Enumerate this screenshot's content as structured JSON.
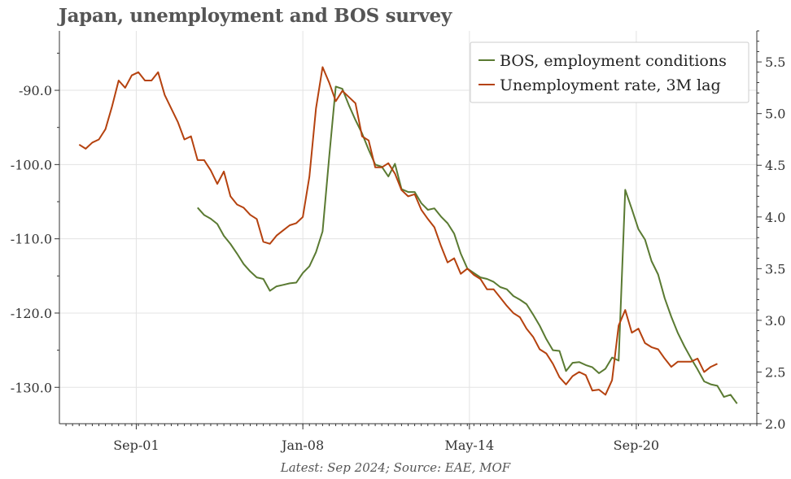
{
  "title": "Japan, unemployment and BOS survey",
  "source": "Latest: Sep 2024; Source: EAE, MOF",
  "chart_data": {
    "type": "line",
    "title": "Japan, unemployment and BOS survey",
    "x_range": [
      1998.75,
      2025.25
    ],
    "x_ticks": [
      {
        "label": "Sep-01",
        "value": 2001.67
      },
      {
        "label": "Jan-08",
        "value": 2008.0
      },
      {
        "label": "May-14",
        "value": 2014.33
      },
      {
        "label": "Sep-20",
        "value": 2020.67
      }
    ],
    "left_axis": {
      "range": [
        -134.9,
        -82.0
      ],
      "ticks": [
        -90,
        -100,
        -110,
        -120,
        -130
      ],
      "tick_labels": [
        "-90.0",
        "-100.0",
        "-110.0",
        "-120.0",
        "-130.0"
      ]
    },
    "right_axis": {
      "range": [
        2.0,
        5.8
      ],
      "ticks": [
        2.0,
        2.5,
        3.0,
        3.5,
        4.0,
        4.5,
        5.0,
        5.5
      ],
      "tick_labels": [
        "2.0",
        "2.5",
        "3.0",
        "3.5",
        "4.0",
        "4.5",
        "5.0",
        "5.5"
      ]
    },
    "grid": true,
    "legend_position": "top-right",
    "series": [
      {
        "name": "BOS, employment conditions",
        "axis": "left",
        "color": "#5a7a32",
        "points": [
          [
            2004.0,
            -105.8
          ],
          [
            2004.25,
            -106.8
          ],
          [
            2004.5,
            -107.3
          ],
          [
            2004.75,
            -108.0
          ],
          [
            2005.0,
            -109.6
          ],
          [
            2005.25,
            -110.7
          ],
          [
            2005.5,
            -112.0
          ],
          [
            2005.75,
            -113.4
          ],
          [
            2006.0,
            -114.4
          ],
          [
            2006.25,
            -115.2
          ],
          [
            2006.5,
            -115.4
          ],
          [
            2006.75,
            -117.0
          ],
          [
            2007.0,
            -116.4
          ],
          [
            2007.25,
            -116.2
          ],
          [
            2007.5,
            -116.0
          ],
          [
            2007.75,
            -115.9
          ],
          [
            2008.0,
            -114.6
          ],
          [
            2008.25,
            -113.7
          ],
          [
            2008.5,
            -111.8
          ],
          [
            2008.75,
            -109.0
          ],
          [
            2009.0,
            -99.0
          ],
          [
            2009.25,
            -89.5
          ],
          [
            2009.5,
            -89.8
          ],
          [
            2009.75,
            -92.0
          ],
          [
            2010.0,
            -94.0
          ],
          [
            2010.25,
            -95.8
          ],
          [
            2010.5,
            -98.0
          ],
          [
            2010.75,
            -100.0
          ],
          [
            2011.0,
            -100.3
          ],
          [
            2011.25,
            -101.6
          ],
          [
            2011.5,
            -99.9
          ],
          [
            2011.75,
            -103.3
          ],
          [
            2012.0,
            -103.7
          ],
          [
            2012.25,
            -103.7
          ],
          [
            2012.5,
            -105.2
          ],
          [
            2012.75,
            -106.1
          ],
          [
            2013.0,
            -105.9
          ],
          [
            2013.25,
            -107.0
          ],
          [
            2013.5,
            -107.9
          ],
          [
            2013.75,
            -109.3
          ],
          [
            2014.0,
            -112.0
          ],
          [
            2014.25,
            -114.0
          ],
          [
            2014.5,
            -114.6
          ],
          [
            2014.75,
            -115.2
          ],
          [
            2015.0,
            -115.4
          ],
          [
            2015.25,
            -115.8
          ],
          [
            2015.5,
            -116.5
          ],
          [
            2015.75,
            -116.8
          ],
          [
            2016.0,
            -117.7
          ],
          [
            2016.25,
            -118.2
          ],
          [
            2016.5,
            -118.8
          ],
          [
            2016.75,
            -120.2
          ],
          [
            2017.0,
            -121.7
          ],
          [
            2017.25,
            -123.5
          ],
          [
            2017.5,
            -125.0
          ],
          [
            2017.75,
            -125.1
          ],
          [
            2018.0,
            -127.8
          ],
          [
            2018.25,
            -126.7
          ],
          [
            2018.5,
            -126.6
          ],
          [
            2018.75,
            -127.0
          ],
          [
            2019.0,
            -127.3
          ],
          [
            2019.25,
            -128.1
          ],
          [
            2019.5,
            -127.5
          ],
          [
            2019.75,
            -126.0
          ],
          [
            2020.0,
            -126.4
          ],
          [
            2020.25,
            -103.4
          ],
          [
            2020.5,
            -106.0
          ],
          [
            2020.75,
            -108.7
          ],
          [
            2021.0,
            -110.1
          ],
          [
            2021.25,
            -113.0
          ],
          [
            2021.5,
            -114.8
          ],
          [
            2021.75,
            -118.0
          ],
          [
            2022.0,
            -120.5
          ],
          [
            2022.25,
            -122.7
          ],
          [
            2022.5,
            -124.5
          ],
          [
            2022.75,
            -126.1
          ],
          [
            2023.0,
            -127.6
          ],
          [
            2023.25,
            -129.2
          ],
          [
            2023.5,
            -129.6
          ],
          [
            2023.75,
            -129.8
          ],
          [
            2024.0,
            -131.3
          ],
          [
            2024.25,
            -131.0
          ],
          [
            2024.5,
            -132.2
          ]
        ]
      },
      {
        "name": "Unemployment rate, 3M lag",
        "axis": "right",
        "color": "#b5420f",
        "points": [
          [
            1999.5,
            4.7
          ],
          [
            1999.75,
            4.66
          ],
          [
            2000.0,
            4.72
          ],
          [
            2000.25,
            4.75
          ],
          [
            2000.5,
            4.85
          ],
          [
            2000.75,
            5.07
          ],
          [
            2001.0,
            5.32
          ],
          [
            2001.25,
            5.25
          ],
          [
            2001.5,
            5.37
          ],
          [
            2001.75,
            5.4
          ],
          [
            2002.0,
            5.32
          ],
          [
            2002.25,
            5.32
          ],
          [
            2002.5,
            5.4
          ],
          [
            2002.75,
            5.18
          ],
          [
            2003.0,
            5.05
          ],
          [
            2003.25,
            4.92
          ],
          [
            2003.5,
            4.75
          ],
          [
            2003.75,
            4.78
          ],
          [
            2004.0,
            4.55
          ],
          [
            2004.25,
            4.55
          ],
          [
            2004.5,
            4.45
          ],
          [
            2004.75,
            4.32
          ],
          [
            2005.0,
            4.44
          ],
          [
            2005.25,
            4.2
          ],
          [
            2005.5,
            4.12
          ],
          [
            2005.75,
            4.09
          ],
          [
            2006.0,
            4.02
          ],
          [
            2006.25,
            3.98
          ],
          [
            2006.5,
            3.76
          ],
          [
            2006.75,
            3.74
          ],
          [
            2007.0,
            3.82
          ],
          [
            2007.25,
            3.87
          ],
          [
            2007.5,
            3.92
          ],
          [
            2007.75,
            3.94
          ],
          [
            2008.0,
            4.0
          ],
          [
            2008.25,
            4.39
          ],
          [
            2008.5,
            5.05
          ],
          [
            2008.75,
            5.45
          ],
          [
            2009.0,
            5.3
          ],
          [
            2009.25,
            5.12
          ],
          [
            2009.5,
            5.22
          ],
          [
            2009.75,
            5.16
          ],
          [
            2010.0,
            5.1
          ],
          [
            2010.25,
            4.78
          ],
          [
            2010.5,
            4.74
          ],
          [
            2010.75,
            4.48
          ],
          [
            2011.0,
            4.48
          ],
          [
            2011.25,
            4.52
          ],
          [
            2011.5,
            4.42
          ],
          [
            2011.75,
            4.26
          ],
          [
            2012.0,
            4.2
          ],
          [
            2012.25,
            4.22
          ],
          [
            2012.5,
            4.07
          ],
          [
            2012.75,
            3.98
          ],
          [
            2013.0,
            3.9
          ],
          [
            2013.25,
            3.72
          ],
          [
            2013.5,
            3.56
          ],
          [
            2013.75,
            3.6
          ],
          [
            2014.0,
            3.45
          ],
          [
            2014.25,
            3.5
          ],
          [
            2014.5,
            3.44
          ],
          [
            2014.75,
            3.4
          ],
          [
            2015.0,
            3.3
          ],
          [
            2015.25,
            3.3
          ],
          [
            2015.5,
            3.22
          ],
          [
            2015.75,
            3.14
          ],
          [
            2016.0,
            3.07
          ],
          [
            2016.25,
            3.03
          ],
          [
            2016.5,
            2.92
          ],
          [
            2016.75,
            2.84
          ],
          [
            2017.0,
            2.72
          ],
          [
            2017.25,
            2.68
          ],
          [
            2017.5,
            2.58
          ],
          [
            2017.75,
            2.45
          ],
          [
            2018.0,
            2.38
          ],
          [
            2018.25,
            2.46
          ],
          [
            2018.5,
            2.5
          ],
          [
            2018.75,
            2.47
          ],
          [
            2019.0,
            2.32
          ],
          [
            2019.25,
            2.33
          ],
          [
            2019.5,
            2.28
          ],
          [
            2019.75,
            2.42
          ],
          [
            2020.0,
            2.95
          ],
          [
            2020.25,
            3.1
          ],
          [
            2020.5,
            2.88
          ],
          [
            2020.75,
            2.92
          ],
          [
            2021.0,
            2.78
          ],
          [
            2021.25,
            2.74
          ],
          [
            2021.5,
            2.72
          ],
          [
            2021.75,
            2.63
          ],
          [
            2022.0,
            2.55
          ],
          [
            2022.25,
            2.6
          ],
          [
            2022.5,
            2.6
          ],
          [
            2022.75,
            2.6
          ],
          [
            2023.0,
            2.63
          ],
          [
            2023.25,
            2.5
          ],
          [
            2023.5,
            2.55
          ],
          [
            2023.75,
            2.58
          ]
        ]
      }
    ]
  }
}
